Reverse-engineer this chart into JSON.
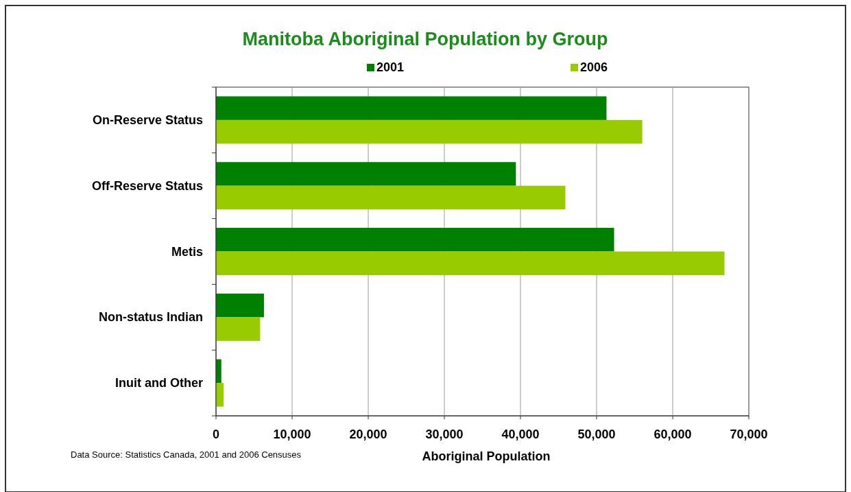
{
  "chart_data": {
    "type": "bar",
    "orientation": "horizontal",
    "title": "Manitoba Aboriginal Population by Group",
    "xlabel": "Aboriginal Population",
    "categories": [
      "On-Reserve Status",
      "Off-Reserve Status",
      "Metis",
      "Non-status Indian",
      "Inuit and Other"
    ],
    "series": [
      {
        "name": "2001",
        "color": "#008000",
        "values": [
          51300,
          39400,
          52300,
          6300,
          700
        ]
      },
      {
        "name": "2006",
        "color": "#99cc00",
        "values": [
          56000,
          45900,
          66800,
          5800,
          1000
        ]
      }
    ],
    "xlim": [
      0,
      70000
    ],
    "xticks": [
      0,
      {
        "value": 10000,
        "label": "10,000"
      },
      {
        "value": 20000,
        "label": "20,000"
      },
      {
        "value": 30000,
        "label": "30,000"
      },
      {
        "value": 40000,
        "label": "40,000"
      },
      {
        "value": 50000,
        "label": "50,000"
      },
      {
        "value": 60000,
        "label": "60,000"
      },
      {
        "value": 70000,
        "label": "70,000"
      }
    ],
    "grid": "x",
    "legend": "top",
    "annotations": [
      "Data Source:  Statistics Canada, 2001 and 2006 Censuses"
    ]
  }
}
